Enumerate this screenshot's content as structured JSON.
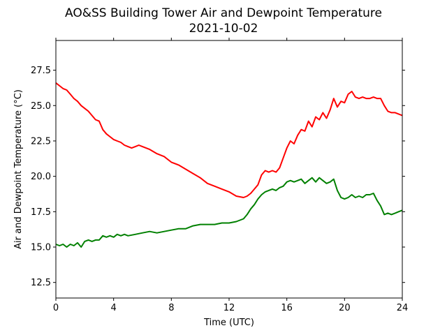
{
  "chart_data": {
    "type": "line",
    "title": "AO&SS Building Tower Air and Dewpoint Temperature",
    "subtitle": "2021-10-02",
    "xlabel": "Time (UTC)",
    "ylabel": "Air and Dewpoint Temperature (°C)",
    "xlim": [
      0,
      24
    ],
    "ylim": [
      11.4,
      29.6
    ],
    "xticks": [
      0,
      4,
      8,
      12,
      16,
      20,
      24
    ],
    "yticks": [
      12.5,
      15.0,
      17.5,
      20.0,
      22.5,
      25.0,
      27.5
    ],
    "xtick_labels": [
      "0",
      "4",
      "8",
      "12",
      "16",
      "20",
      "24"
    ],
    "ytick_labels": [
      "12.5",
      "15.0",
      "17.5",
      "20.0",
      "22.5",
      "25.0",
      "27.5"
    ],
    "grid": false,
    "legend": "none",
    "series": [
      {
        "color": "#ff0000",
        "x": [
          0.0,
          0.25,
          0.5,
          0.75,
          1.0,
          1.25,
          1.5,
          1.75,
          2.0,
          2.25,
          2.5,
          2.75,
          3.0,
          3.25,
          3.5,
          3.75,
          4.0,
          4.25,
          4.5,
          4.75,
          5.0,
          5.25,
          5.5,
          5.75,
          6.0,
          6.5,
          7.0,
          7.5,
          8.0,
          8.5,
          9.0,
          9.5,
          10.0,
          10.5,
          11.0,
          11.5,
          12.0,
          12.5,
          13.0,
          13.25,
          13.5,
          13.75,
          14.0,
          14.25,
          14.5,
          14.75,
          15.0,
          15.25,
          15.5,
          15.75,
          16.0,
          16.25,
          16.5,
          16.75,
          17.0,
          17.25,
          17.5,
          17.75,
          18.0,
          18.25,
          18.5,
          18.75,
          19.0,
          19.25,
          19.5,
          19.75,
          20.0,
          20.25,
          20.5,
          20.75,
          21.0,
          21.25,
          21.5,
          21.75,
          22.0,
          22.25,
          22.5,
          22.75,
          23.0,
          23.25,
          23.5,
          23.75,
          24.0
        ],
        "y": [
          26.6,
          26.4,
          26.2,
          26.1,
          25.8,
          25.5,
          25.3,
          25.0,
          24.8,
          24.6,
          24.3,
          24.0,
          23.9,
          23.3,
          23.0,
          22.8,
          22.6,
          22.5,
          22.4,
          22.2,
          22.1,
          22.0,
          22.1,
          22.2,
          22.1,
          21.9,
          21.6,
          21.4,
          21.0,
          20.8,
          20.5,
          20.2,
          19.9,
          19.5,
          19.3,
          19.1,
          18.9,
          18.6,
          18.5,
          18.6,
          18.8,
          19.1,
          19.4,
          20.1,
          20.4,
          20.3,
          20.4,
          20.3,
          20.6,
          21.3,
          22.0,
          22.5,
          22.3,
          22.9,
          23.3,
          23.2,
          23.9,
          23.5,
          24.2,
          24.0,
          24.5,
          24.1,
          24.7,
          25.5,
          24.9,
          25.3,
          25.2,
          25.8,
          26.0,
          25.6,
          25.5,
          25.6,
          25.5,
          25.5,
          25.6,
          25.5,
          25.5,
          25.0,
          24.6,
          24.5,
          24.5,
          24.4,
          24.3
        ]
      },
      {
        "color": "#008000",
        "x": [
          0.0,
          0.25,
          0.5,
          0.75,
          1.0,
          1.25,
          1.5,
          1.75,
          2.0,
          2.25,
          2.5,
          2.75,
          3.0,
          3.25,
          3.5,
          3.75,
          4.0,
          4.25,
          4.5,
          4.75,
          5.0,
          5.5,
          6.0,
          6.5,
          7.0,
          7.5,
          8.0,
          8.5,
          9.0,
          9.5,
          10.0,
          10.5,
          11.0,
          11.5,
          12.0,
          12.5,
          13.0,
          13.25,
          13.5,
          13.75,
          14.0,
          14.25,
          14.5,
          14.75,
          15.0,
          15.25,
          15.5,
          15.75,
          16.0,
          16.25,
          16.5,
          16.75,
          17.0,
          17.25,
          17.5,
          17.75,
          18.0,
          18.25,
          18.5,
          18.75,
          19.0,
          19.25,
          19.5,
          19.75,
          20.0,
          20.25,
          20.5,
          20.75,
          21.0,
          21.25,
          21.5,
          21.75,
          22.0,
          22.25,
          22.5,
          22.75,
          23.0,
          23.25,
          23.5,
          23.75,
          24.0
        ],
        "y": [
          15.2,
          15.1,
          15.2,
          15.0,
          15.2,
          15.1,
          15.3,
          15.0,
          15.4,
          15.5,
          15.4,
          15.5,
          15.5,
          15.8,
          15.7,
          15.8,
          15.7,
          15.9,
          15.8,
          15.9,
          15.8,
          15.9,
          16.0,
          16.1,
          16.0,
          16.1,
          16.2,
          16.3,
          16.3,
          16.5,
          16.6,
          16.6,
          16.6,
          16.7,
          16.7,
          16.8,
          17.0,
          17.3,
          17.7,
          18.0,
          18.4,
          18.7,
          18.9,
          19.0,
          19.1,
          19.0,
          19.2,
          19.3,
          19.6,
          19.7,
          19.6,
          19.7,
          19.8,
          19.5,
          19.7,
          19.9,
          19.6,
          19.9,
          19.7,
          19.5,
          19.6,
          19.8,
          19.0,
          18.5,
          18.4,
          18.5,
          18.7,
          18.5,
          18.6,
          18.5,
          18.7,
          18.7,
          18.8,
          18.3,
          17.9,
          17.3,
          17.4,
          17.3,
          17.4,
          17.5,
          17.6
        ]
      }
    ]
  }
}
